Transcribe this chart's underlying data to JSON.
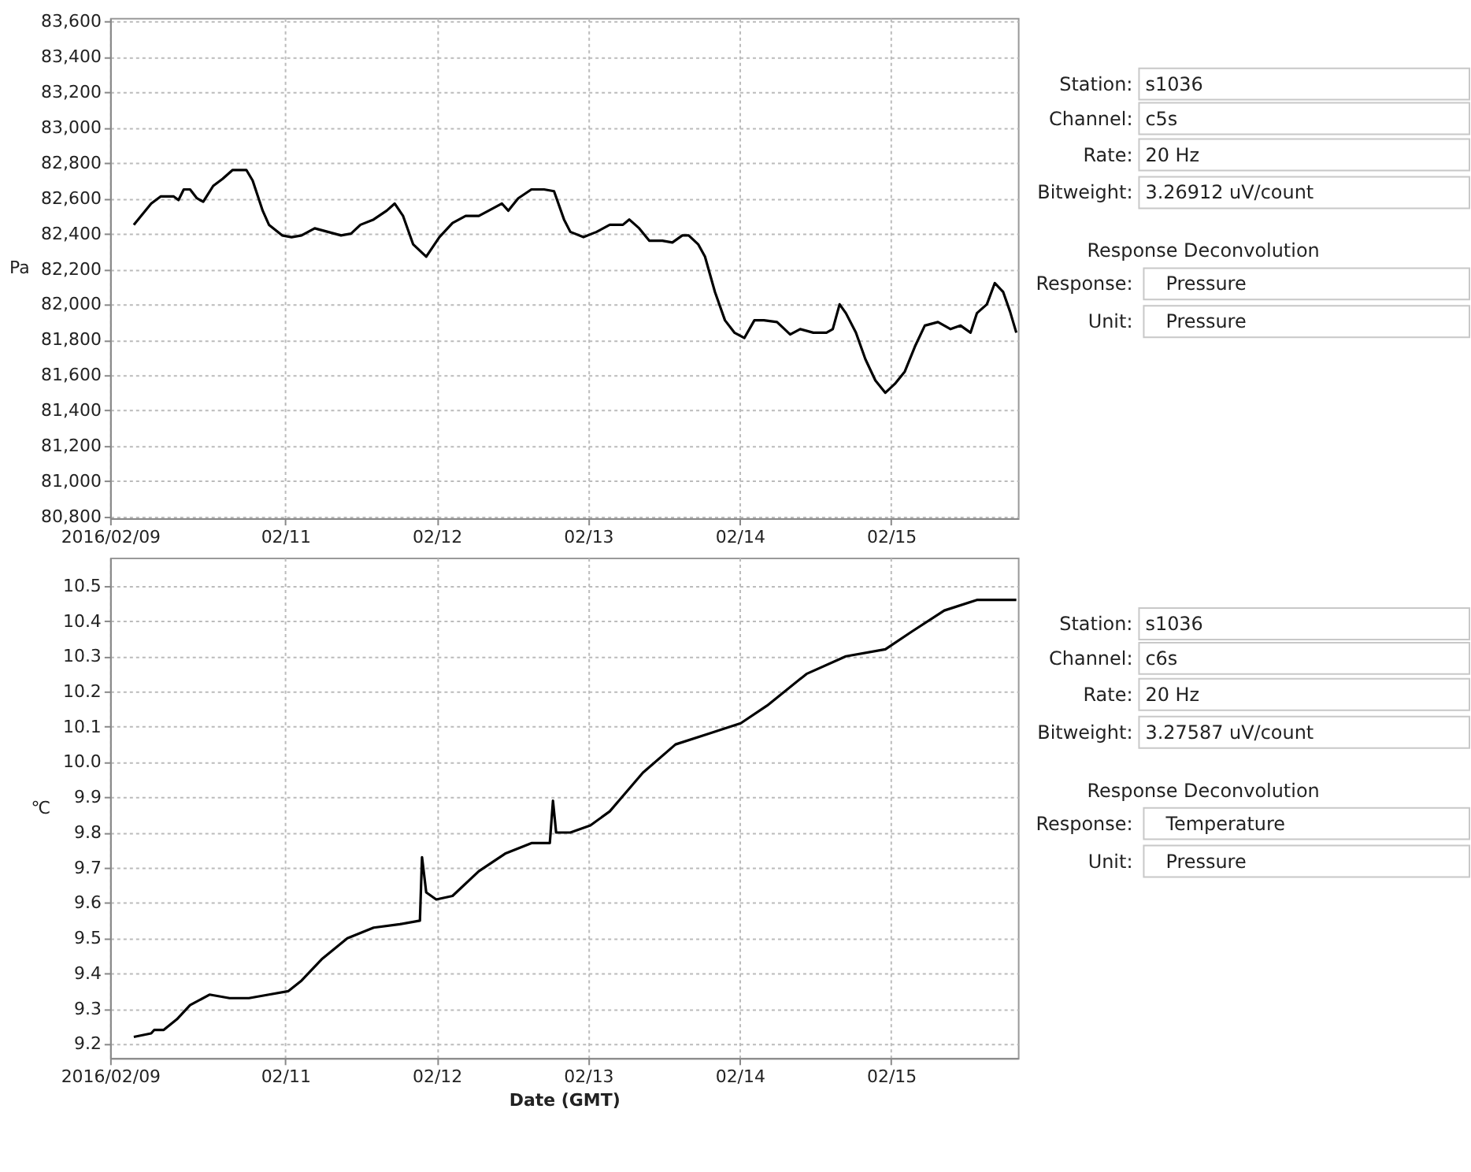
{
  "chart_data": [
    {
      "type": "line",
      "ylabel": "Pa",
      "grid": true,
      "xlim": [
        "2016-02-09T20:15",
        "2016-02-15T20:05"
      ],
      "xticks": [
        {
          "value": "2016-02-09T20:15",
          "label": "2016/02/09"
        },
        {
          "value": "2016-02-11",
          "label": "02/11"
        },
        {
          "value": "2016-02-12",
          "label": "02/12"
        },
        {
          "value": "2016-02-13",
          "label": "02/13"
        },
        {
          "value": "2016-02-14",
          "label": "02/14"
        },
        {
          "value": "2016-02-15",
          "label": "02/15"
        }
      ],
      "ylim": [
        80790,
        83620
      ],
      "yticks": [
        {
          "value": 80800,
          "label": "80,800"
        },
        {
          "value": 81000,
          "label": "81,000"
        },
        {
          "value": 81200,
          "label": "81,200"
        },
        {
          "value": 81400,
          "label": "81,400"
        },
        {
          "value": 81600,
          "label": "81,600"
        },
        {
          "value": 81800,
          "label": "81,800"
        },
        {
          "value": 82000,
          "label": "82,000"
        },
        {
          "value": 82200,
          "label": "82,200"
        },
        {
          "value": 82400,
          "label": "82,400"
        },
        {
          "value": 82600,
          "label": "82,600"
        },
        {
          "value": 82800,
          "label": "82,800"
        },
        {
          "value": 83000,
          "label": "83,000"
        },
        {
          "value": 83200,
          "label": "83,200"
        },
        {
          "value": 83400,
          "label": "83,400"
        },
        {
          "value": 83600,
          "label": "83,600"
        }
      ],
      "x": [
        "2016-02-10T00:00",
        "2016-02-10T02:45",
        "2016-02-10T04:15",
        "2016-02-10T06:20",
        "2016-02-10T07:05",
        "2016-02-10T07:55",
        "2016-02-10T08:55",
        "2016-02-10T10:00",
        "2016-02-10T11:00",
        "2016-02-10T12:35",
        "2016-02-10T14:05",
        "2016-02-10T15:40",
        "2016-02-10T17:50",
        "2016-02-10T18:50",
        "2016-02-10T20:25",
        "2016-02-10T21:25",
        "2016-02-10T23:30",
        "2016-02-11T01:00",
        "2016-02-11T02:35",
        "2016-02-11T04:40",
        "2016-02-11T06:45",
        "2016-02-11T08:50",
        "2016-02-11T10:25",
        "2016-02-11T11:55",
        "2016-02-11T14:00",
        "2016-02-11T16:05",
        "2016-02-11T17:20",
        "2016-02-11T18:40",
        "2016-02-11T20:15",
        "2016-02-11T22:20",
        "2016-02-12T00:25",
        "2016-02-12T02:30",
        "2016-02-12T04:35",
        "2016-02-12T06:40",
        "2016-02-12T08:15",
        "2016-02-12T10:20",
        "2016-02-12T11:20",
        "2016-02-12T12:55",
        "2016-02-12T15:00",
        "2016-02-12T17:00",
        "2016-02-12T18:35",
        "2016-02-12T20:10",
        "2016-02-12T21:10",
        "2016-02-12T23:15",
        "2016-02-13T01:20",
        "2016-02-13T03:25",
        "2016-02-13T05:30",
        "2016-02-13T06:30",
        "2016-02-13T08:05",
        "2016-02-13T09:40",
        "2016-02-13T11:45",
        "2016-02-13T13:20",
        "2016-02-13T14:55",
        "2016-02-13T15:55",
        "2016-02-13T17:25",
        "2016-02-13T18:30",
        "2016-02-13T20:05",
        "2016-02-13T21:40",
        "2016-02-13T23:10",
        "2016-02-14T00:45",
        "2016-02-14T02:20",
        "2016-02-14T03:50",
        "2016-02-14T05:55",
        "2016-02-14T08:00",
        "2016-02-14T09:35",
        "2016-02-14T11:40",
        "2016-02-14T13:45",
        "2016-02-14T14:45",
        "2016-02-14T15:50",
        "2016-02-14T16:50",
        "2016-02-14T18:25",
        "2016-02-14T19:55",
        "2016-02-14T21:30",
        "2016-02-14T23:05",
        "2016-02-15T00:35",
        "2016-02-15T02:10",
        "2016-02-15T03:45",
        "2016-02-15T05:20",
        "2016-02-15T07:25",
        "2016-02-15T09:25",
        "2016-02-15T11:00",
        "2016-02-15T12:35",
        "2016-02-15T13:35",
        "2016-02-15T15:10",
        "2016-02-15T16:25",
        "2016-02-15T17:45",
        "2016-02-15T18:50",
        "2016-02-15T19:50"
      ],
      "series": [
        {
          "color": "#000000",
          "values": [
            82450,
            82570,
            82610,
            82610,
            82590,
            82650,
            82650,
            82600,
            82580,
            82670,
            82710,
            82760,
            82760,
            82700,
            82530,
            82450,
            82390,
            82380,
            82390,
            82430,
            82410,
            82390,
            82400,
            82450,
            82480,
            82530,
            82570,
            82500,
            82340,
            82270,
            82380,
            82460,
            82500,
            82500,
            82530,
            82570,
            82530,
            82600,
            82650,
            82650,
            82640,
            82480,
            82410,
            82380,
            82410,
            82450,
            82450,
            82480,
            82430,
            82360,
            82360,
            82350,
            82390,
            82390,
            82340,
            82270,
            82070,
            81910,
            81840,
            81810,
            81910,
            81910,
            81900,
            81830,
            81860,
            81840,
            81840,
            81860,
            82000,
            81950,
            81840,
            81690,
            81570,
            81500,
            81550,
            81620,
            81760,
            81880,
            81900,
            81860,
            81880,
            81840,
            81950,
            82000,
            82120,
            82070,
            81960,
            81840
          ]
        }
      ]
    },
    {
      "type": "other",
      "annotations": [
        "Station:",
        "s1036",
        "Channel:",
        "c5s",
        "Rate:",
        "20 Hz",
        "Bitweight:",
        "3.26912 uV/count",
        "Response Deconvolution",
        "Response:",
        "Pressure",
        "Unit:",
        "Pressure"
      ]
    },
    {
      "type": "line",
      "ylabel": "℃",
      "xlabel": "Date (GMT)",
      "grid": true,
      "xlim": [
        "2016-02-09T20:15",
        "2016-02-15T20:05"
      ],
      "xticks": [
        {
          "value": "2016-02-09T20:15",
          "label": "2016/02/09"
        },
        {
          "value": "2016-02-11",
          "label": "02/11"
        },
        {
          "value": "2016-02-12",
          "label": "02/12"
        },
        {
          "value": "2016-02-13",
          "label": "02/13"
        },
        {
          "value": "2016-02-14",
          "label": "02/14"
        },
        {
          "value": "2016-02-15",
          "label": "02/15"
        }
      ],
      "ylim": [
        9.16,
        10.58
      ],
      "yticks": [
        9.2,
        9.3,
        9.4,
        9.5,
        9.6,
        9.7,
        9.8,
        9.9,
        {
          "value": 10,
          "label": "10.0"
        },
        10.1,
        10.2,
        10.3,
        10.4,
        10.5
      ],
      "x": [
        "2016-02-10T00:00",
        "2016-02-10T02:45",
        "2016-02-10T03:15",
        "2016-02-10T04:45",
        "2016-02-10T06:50",
        "2016-02-10T08:55",
        "2016-02-10T12:00",
        "2016-02-10T15:10",
        "2016-02-10T18:15",
        "2016-02-10T21:25",
        "2016-02-11T00:30",
        "2016-02-11T02:35",
        "2016-02-11T05:45",
        "2016-02-11T09:50",
        "2016-02-11T14:00",
        "2016-02-11T18:10",
        "2016-02-11T21:20",
        "2016-02-11T21:40",
        "2016-02-11T22:20",
        "2016-02-11T23:55",
        "2016-02-12T02:30",
        "2016-02-12T06:40",
        "2016-02-12T10:50",
        "2016-02-12T15:00",
        "2016-02-12T17:55",
        "2016-02-12T18:25",
        "2016-02-12T18:55",
        "2016-02-12T21:10",
        "2016-02-13T00:20",
        "2016-02-13T03:25",
        "2016-02-13T08:40",
        "2016-02-13T13:50",
        "2016-02-13T19:00",
        "2016-02-14T00:10",
        "2016-02-14T04:20",
        "2016-02-14T10:35",
        "2016-02-14T16:50",
        "2016-02-14T23:05",
        "2016-02-15T03:15",
        "2016-02-15T08:25",
        "2016-02-15T13:35",
        "2016-02-15T16:45",
        "2016-02-15T19:50"
      ],
      "series": [
        {
          "color": "#000000",
          "values": [
            9.22,
            9.23,
            9.24,
            9.24,
            9.27,
            9.31,
            9.34,
            9.33,
            9.33,
            9.34,
            9.35,
            9.38,
            9.44,
            9.5,
            9.53,
            9.54,
            9.55,
            9.73,
            9.63,
            9.61,
            9.62,
            9.69,
            9.74,
            9.77,
            9.77,
            9.89,
            9.8,
            9.8,
            9.82,
            9.86,
            9.97,
            10.05,
            10.08,
            10.11,
            10.16,
            10.25,
            10.3,
            10.32,
            10.37,
            10.43,
            10.46,
            10.46,
            10.46
          ]
        }
      ]
    },
    {
      "type": "other",
      "annotations": [
        "Station:",
        "s1036",
        "Channel:",
        "c6s",
        "Rate:",
        "20 Hz",
        "Bitweight:",
        "3.27587 uV/count",
        "Response Deconvolution",
        "Response:",
        "Temperature",
        "Unit:",
        "Pressure"
      ]
    }
  ]
}
